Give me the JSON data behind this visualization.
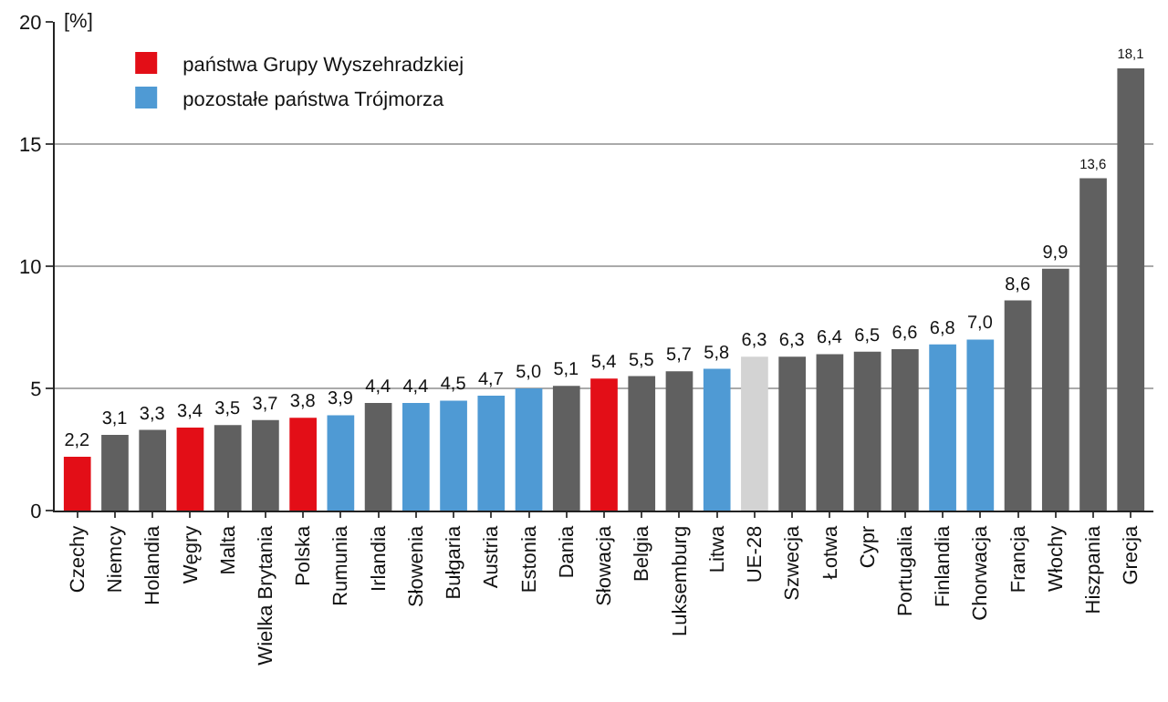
{
  "chart_data": {
    "type": "bar",
    "ylabel": "[%]",
    "categories": [
      "Czechy",
      "Niemcy",
      "Holandia",
      "Węgry",
      "Malta",
      "Wielka Brytania",
      "Polska",
      "Rumunia",
      "Irlandia",
      "Słowenia",
      "Bułgaria",
      "Austria",
      "Estonia",
      "Dania",
      "Słowacja",
      "Belgia",
      "Luksemburg",
      "Litwa",
      "UE-28",
      "Szwecja",
      "Łotwa",
      "Cypr",
      "Portugalia",
      "Finlandia",
      "Chorwacja",
      "Francja",
      "Włochy",
      "Hiszpania",
      "Grecja"
    ],
    "series": [
      {
        "name": "państwa Grupy Wyszehradzkiej",
        "color": "#e30e17",
        "values": [
          2.2,
          null,
          null,
          3.4,
          null,
          null,
          3.8,
          null,
          null,
          null,
          null,
          null,
          null,
          null,
          5.4,
          null,
          null,
          null,
          null,
          null,
          null,
          null,
          null,
          null,
          null,
          null,
          null,
          null,
          null
        ],
        "value_labels": [
          "2,2",
          null,
          null,
          "3,4",
          null,
          null,
          "3,8",
          null,
          null,
          null,
          null,
          null,
          null,
          null,
          "5,4",
          null,
          null,
          null,
          null,
          null,
          null,
          null,
          null,
          null,
          null,
          null,
          null,
          null,
          null
        ]
      },
      {
        "name": "pozostałe państwa Trójmorza",
        "color": "#4f9ad4",
        "values": [
          null,
          null,
          null,
          null,
          null,
          null,
          null,
          3.9,
          null,
          4.4,
          4.5,
          4.7,
          5.0,
          null,
          null,
          null,
          null,
          5.8,
          null,
          null,
          null,
          null,
          null,
          6.8,
          7.0,
          null,
          null,
          null,
          null
        ],
        "value_labels": [
          null,
          null,
          null,
          null,
          null,
          null,
          null,
          "3,9",
          null,
          "4,4",
          "4,5",
          "4,7",
          "5,0",
          null,
          null,
          null,
          null,
          "5,8",
          null,
          null,
          null,
          null,
          null,
          "6,8",
          "7,0",
          null,
          null,
          null,
          null
        ]
      },
      {
        "color": "#606060",
        "values": [
          null,
          3.1,
          3.3,
          null,
          3.5,
          3.7,
          null,
          null,
          4.4,
          null,
          null,
          null,
          null,
          5.1,
          null,
          5.5,
          5.7,
          null,
          null,
          6.3,
          6.4,
          6.5,
          6.6,
          null,
          null,
          8.6,
          9.9,
          13.6,
          18.1
        ],
        "value_labels": [
          null,
          "3,1",
          "3,3",
          null,
          "3,5",
          "3,7",
          null,
          null,
          "4,4",
          null,
          null,
          null,
          null,
          "5,1",
          null,
          "5,5",
          "5,7",
          null,
          null,
          "6,3",
          "6,4",
          "6,5",
          "6,6",
          null,
          null,
          "8,6",
          "9,9",
          "13,6",
          "18,1"
        ]
      },
      {
        "color": "#d3d3d3",
        "values": [
          null,
          null,
          null,
          null,
          null,
          null,
          null,
          null,
          null,
          null,
          null,
          null,
          null,
          null,
          null,
          null,
          null,
          null,
          6.3,
          null,
          null,
          null,
          null,
          null,
          null,
          null,
          null,
          null,
          null
        ],
        "value_labels": [
          null,
          null,
          null,
          null,
          null,
          null,
          null,
          null,
          null,
          null,
          null,
          null,
          null,
          null,
          null,
          null,
          null,
          null,
          "6,3",
          null,
          null,
          null,
          null,
          null,
          null,
          null,
          null,
          null,
          null
        ]
      }
    ],
    "ylim": [
      0,
      20
    ],
    "yticks": [
      0,
      5,
      10,
      15,
      20
    ],
    "grid": "y",
    "legend": "top left"
  }
}
